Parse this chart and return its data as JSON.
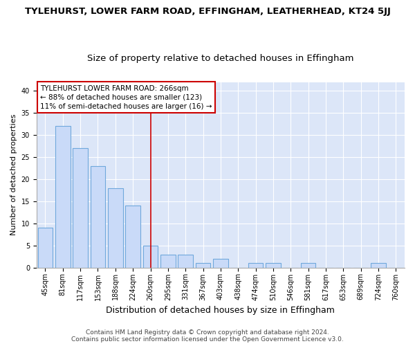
{
  "title": "TYLEHURST, LOWER FARM ROAD, EFFINGHAM, LEATHERHEAD, KT24 5JJ",
  "subtitle": "Size of property relative to detached houses in Effingham",
  "xlabel": "Distribution of detached houses by size in Effingham",
  "ylabel": "Number of detached properties",
  "categories": [
    "45sqm",
    "81sqm",
    "117sqm",
    "153sqm",
    "188sqm",
    "224sqm",
    "260sqm",
    "295sqm",
    "331sqm",
    "367sqm",
    "403sqm",
    "438sqm",
    "474sqm",
    "510sqm",
    "546sqm",
    "581sqm",
    "617sqm",
    "653sqm",
    "689sqm",
    "724sqm",
    "760sqm"
  ],
  "values": [
    9,
    32,
    27,
    23,
    18,
    14,
    5,
    3,
    3,
    1,
    2,
    0,
    1,
    1,
    0,
    1,
    0,
    0,
    0,
    1,
    0
  ],
  "bar_color": "#c9daf8",
  "bar_edge_color": "#6fa8dc",
  "background_color": "#dce6f8",
  "grid_color": "#ffffff",
  "vline_x_index": 6,
  "vline_color": "#cc0000",
  "annotation_title": "TYLEHURST LOWER FARM ROAD: 266sqm",
  "annotation_line1": "← 88% of detached houses are smaller (123)",
  "annotation_line2": "11% of semi-detached houses are larger (16) →",
  "annotation_box_color": "#ffffff",
  "annotation_box_edge_color": "#cc0000",
  "ylim": [
    0,
    42
  ],
  "yticks": [
    0,
    5,
    10,
    15,
    20,
    25,
    30,
    35,
    40
  ],
  "footer_line1": "Contains HM Land Registry data © Crown copyright and database right 2024.",
  "footer_line2": "Contains public sector information licensed under the Open Government Licence v3.0.",
  "title_fontsize": 9.5,
  "subtitle_fontsize": 9.5,
  "xlabel_fontsize": 9,
  "ylabel_fontsize": 8,
  "tick_fontsize": 7,
  "annotation_fontsize": 7.5,
  "footer_fontsize": 6.5
}
